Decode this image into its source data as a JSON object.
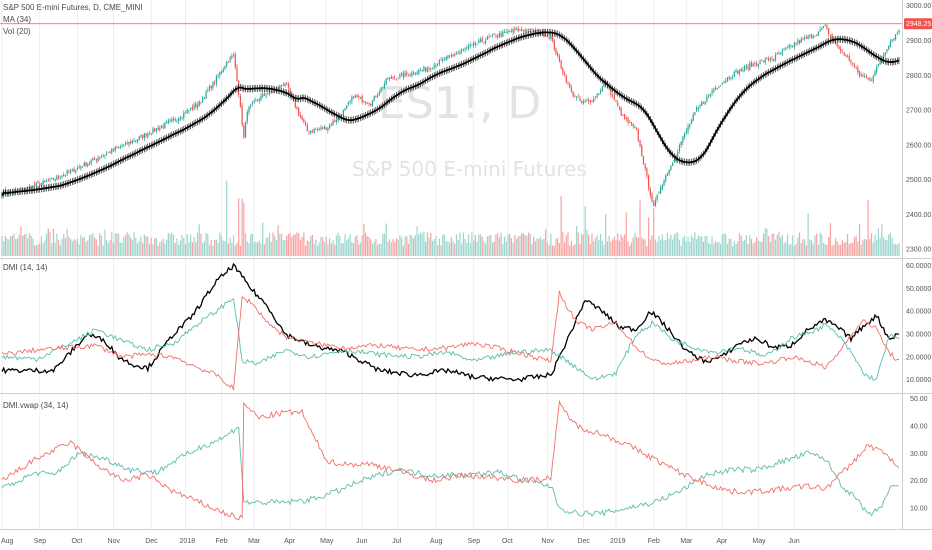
{
  "header": {
    "symbol_line": "S&P 500 E-mini Futures, D, CME_MINI",
    "ma_label": "MA (34)",
    "vol_label": "Vol (20)",
    "watermark_ticker": "ES1!, D",
    "watermark_name": "S&P 500 E-mini Futures",
    "last_price_badge": "2948.25"
  },
  "panes": {
    "dmi_label": "DMI (14, 14)",
    "dmivwap_label": "DMI.vwap (34, 14)"
  },
  "colors": {
    "up": "#26a69a",
    "down": "#ef5350",
    "vol_up": "#9fd6cf",
    "vol_down": "#f7a5a3",
    "ma": "#000000",
    "adx": "#000000",
    "plus_di": "#5cbcb0",
    "minus_di": "#f2706a",
    "price_line": "#ef5350",
    "grid": "#eeeeee",
    "axis": "#cfcfcf"
  },
  "chart_data": [
    {
      "type": "candlestick",
      "title": "S&P 500 E-mini Futures, D, CME_MINI",
      "x_tick_labels": [
        "Aug",
        "Sep",
        "Oct",
        "Nov",
        "Dec",
        "2018",
        "Feb",
        "Mar",
        "Apr",
        "May",
        "Jun",
        "Jul",
        "Aug",
        "Sep",
        "Oct",
        "Nov",
        "Dec",
        "2019",
        "Feb",
        "Mar",
        "Apr",
        "May",
        "Jun"
      ],
      "y_tick_labels": [
        "3000.00",
        "2900.00",
        "2800.00",
        "2700.00",
        "2600.00",
        "2500.00",
        "2400.00",
        "2300.00"
      ],
      "ylim": [
        2280,
        3005
      ],
      "last_price": 2948.25,
      "anchors": [
        [
          0,
          2462
        ],
        [
          10,
          2468
        ],
        [
          30,
          2500
        ],
        [
          45,
          2535
        ],
        [
          62,
          2578
        ],
        [
          78,
          2615
        ],
        [
          100,
          2670
        ],
        [
          115,
          2720
        ],
        [
          125,
          2790
        ],
        [
          132,
          2845
        ],
        [
          135,
          2855
        ],
        [
          137,
          2790
        ],
        [
          141,
          2620
        ],
        [
          143,
          2700
        ],
        [
          150,
          2735
        ],
        [
          160,
          2760
        ],
        [
          165,
          2780
        ],
        [
          172,
          2700
        ],
        [
          178,
          2640
        ],
        [
          190,
          2650
        ],
        [
          200,
          2700
        ],
        [
          205,
          2740
        ],
        [
          215,
          2720
        ],
        [
          225,
          2790
        ],
        [
          235,
          2800
        ],
        [
          248,
          2820
        ],
        [
          260,
          2850
        ],
        [
          272,
          2880
        ],
        [
          285,
          2910
        ],
        [
          300,
          2930
        ],
        [
          310,
          2928
        ],
        [
          320,
          2910
        ],
        [
          324,
          2850
        ],
        [
          332,
          2750
        ],
        [
          338,
          2720
        ],
        [
          345,
          2730
        ],
        [
          352,
          2780
        ],
        [
          362,
          2680
        ],
        [
          370,
          2640
        ],
        [
          377,
          2480
        ],
        [
          380,
          2420
        ],
        [
          384,
          2480
        ],
        [
          390,
          2540
        ],
        [
          397,
          2620
        ],
        [
          405,
          2700
        ],
        [
          415,
          2760
        ],
        [
          425,
          2800
        ],
        [
          437,
          2830
        ],
        [
          450,
          2850
        ],
        [
          462,
          2890
        ],
        [
          475,
          2920
        ],
        [
          480,
          2940
        ],
        [
          487,
          2880
        ],
        [
          495,
          2840
        ],
        [
          500,
          2800
        ],
        [
          507,
          2790
        ],
        [
          517,
          2890
        ],
        [
          523,
          2930
        ]
      ],
      "ma_period": 34,
      "volume": {
        "label": "Vol (20)"
      }
    },
    {
      "type": "line",
      "title": "DMI (14, 14)",
      "y_tick_labels": [
        "60.0000",
        "50.0000",
        "40.0000",
        "30.0000",
        "20.0000",
        "10.0000"
      ],
      "ylim": [
        5,
        62
      ],
      "series": [
        {
          "key": "adx",
          "anchors": [
            [
              0,
              14
            ],
            [
              30,
              14
            ],
            [
              50,
              30
            ],
            [
              60,
              27
            ],
            [
              68,
              20
            ],
            [
              75,
              17
            ],
            [
              85,
              15
            ],
            [
              100,
              30
            ],
            [
              110,
              37
            ],
            [
              125,
              53
            ],
            [
              135,
              60
            ],
            [
              145,
              50
            ],
            [
              155,
              42
            ],
            [
              165,
              30
            ],
            [
              180,
              25
            ],
            [
              200,
              22
            ],
            [
              220,
              14
            ],
            [
              240,
              12
            ],
            [
              260,
              14
            ],
            [
              275,
              11
            ],
            [
              300,
              10
            ],
            [
              320,
              12
            ],
            [
              330,
              28
            ],
            [
              340,
              45
            ],
            [
              350,
              40
            ],
            [
              360,
              33
            ],
            [
              370,
              32
            ],
            [
              378,
              40
            ],
            [
              385,
              35
            ],
            [
              400,
              22
            ],
            [
              410,
              18
            ],
            [
              420,
              20
            ],
            [
              430,
              26
            ],
            [
              440,
              28
            ],
            [
              450,
              24
            ],
            [
              460,
              25
            ],
            [
              470,
              32
            ],
            [
              480,
              36
            ],
            [
              487,
              33
            ],
            [
              495,
              28
            ],
            [
              503,
              34
            ],
            [
              510,
              38
            ],
            [
              517,
              28
            ],
            [
              523,
              30
            ]
          ]
        },
        {
          "key": "plus_di",
          "anchors": [
            [
              0,
              20
            ],
            [
              20,
              19
            ],
            [
              40,
              26
            ],
            [
              55,
              32
            ],
            [
              70,
              27
            ],
            [
              85,
              23
            ],
            [
              100,
              26
            ],
            [
              115,
              35
            ],
            [
              125,
              40
            ],
            [
              135,
              46
            ],
            [
              140,
              18
            ],
            [
              150,
              17
            ],
            [
              165,
              23
            ],
            [
              180,
              20
            ],
            [
              200,
              23
            ],
            [
              220,
              21
            ],
            [
              240,
              20
            ],
            [
              260,
              22
            ],
            [
              275,
              18
            ],
            [
              300,
              22
            ],
            [
              320,
              23
            ],
            [
              330,
              18
            ],
            [
              345,
              10
            ],
            [
              358,
              13
            ],
            [
              370,
              30
            ],
            [
              380,
              35
            ],
            [
              390,
              28
            ],
            [
              400,
              25
            ],
            [
              415,
              22
            ],
            [
              430,
              24
            ],
            [
              445,
              20
            ],
            [
              460,
              28
            ],
            [
              475,
              32
            ],
            [
              480,
              34
            ],
            [
              488,
              29
            ],
            [
              495,
              22
            ],
            [
              503,
              12
            ],
            [
              510,
              10
            ],
            [
              517,
              29
            ],
            [
              523,
              28
            ]
          ]
        },
        {
          "key": "minus_di",
          "anchors": [
            [
              0,
              21
            ],
            [
              20,
              23
            ],
            [
              40,
              24
            ],
            [
              55,
              25
            ],
            [
              70,
              20
            ],
            [
              85,
              21
            ],
            [
              100,
              20
            ],
            [
              115,
              15
            ],
            [
              125,
              12
            ],
            [
              135,
              6
            ],
            [
              140,
              46
            ],
            [
              145,
              44
            ],
            [
              155,
              35
            ],
            [
              165,
              29
            ],
            [
              180,
              26
            ],
            [
              200,
              24
            ],
            [
              220,
              25
            ],
            [
              240,
              23
            ],
            [
              260,
              24
            ],
            [
              275,
              26
            ],
            [
              300,
              22
            ],
            [
              320,
              18
            ],
            [
              325,
              48
            ],
            [
              335,
              35
            ],
            [
              345,
              32
            ],
            [
              358,
              35
            ],
            [
              370,
              24
            ],
            [
              380,
              18
            ],
            [
              390,
              17
            ],
            [
              400,
              18
            ],
            [
              415,
              20
            ],
            [
              430,
              18
            ],
            [
              445,
              17
            ],
            [
              460,
              20
            ],
            [
              475,
              17
            ],
            [
              480,
              15
            ],
            [
              488,
              22
            ],
            [
              495,
              30
            ],
            [
              503,
              36
            ],
            [
              510,
              32
            ],
            [
              517,
              22
            ],
            [
              523,
              18
            ]
          ]
        }
      ]
    },
    {
      "type": "line",
      "title": "DMI.vwap (34, 14)",
      "y_tick_labels": [
        "50.00",
        "40.00",
        "30.00",
        "20.00",
        "10.00"
      ],
      "ylim": [
        3,
        51
      ],
      "series": [
        {
          "key": "plus_di",
          "anchors": [
            [
              0,
              17
            ],
            [
              20,
              23
            ],
            [
              30,
              22
            ],
            [
              45,
              30
            ],
            [
              60,
              28
            ],
            [
              75,
              24
            ],
            [
              90,
              23
            ],
            [
              100,
              27
            ],
            [
              115,
              32
            ],
            [
              130,
              36
            ],
            [
              138,
              40
            ],
            [
              141,
              12
            ],
            [
              150,
              12
            ],
            [
              165,
              12
            ],
            [
              180,
              13
            ],
            [
              195,
              16
            ],
            [
              210,
              20
            ],
            [
              230,
              24
            ],
            [
              250,
              22
            ],
            [
              270,
              22
            ],
            [
              290,
              23
            ],
            [
              305,
              20
            ],
            [
              320,
              18
            ],
            [
              325,
              10
            ],
            [
              335,
              8
            ],
            [
              350,
              8
            ],
            [
              365,
              10
            ],
            [
              380,
              12
            ],
            [
              395,
              16
            ],
            [
              410,
              22
            ],
            [
              425,
              24
            ],
            [
              440,
              24
            ],
            [
              455,
              27
            ],
            [
              470,
              30
            ],
            [
              480,
              28
            ],
            [
              490,
              18
            ],
            [
              500,
              12
            ],
            [
              505,
              7
            ],
            [
              512,
              10
            ],
            [
              518,
              17
            ],
            [
              523,
              18
            ]
          ]
        },
        {
          "key": "minus_di",
          "anchors": [
            [
              0,
              20
            ],
            [
              20,
              28
            ],
            [
              30,
              31
            ],
            [
              40,
              34
            ],
            [
              55,
              26
            ],
            [
              70,
              20
            ],
            [
              85,
              22
            ],
            [
              100,
              16
            ],
            [
              115,
              12
            ],
            [
              130,
              8
            ],
            [
              140,
              6
            ],
            [
              141,
              48
            ],
            [
              150,
              43
            ],
            [
              165,
              45
            ],
            [
              175,
              45
            ],
            [
              180,
              38
            ],
            [
              190,
              27
            ],
            [
              200,
              26
            ],
            [
              215,
              26
            ],
            [
              230,
              24
            ],
            [
              250,
              20
            ],
            [
              270,
              22
            ],
            [
              290,
              21
            ],
            [
              305,
              20
            ],
            [
              320,
              21
            ],
            [
              325,
              48
            ],
            [
              335,
              40
            ],
            [
              350,
              37
            ],
            [
              365,
              33
            ],
            [
              380,
              28
            ],
            [
              395,
              23
            ],
            [
              410,
              19
            ],
            [
              425,
              16
            ],
            [
              440,
              16
            ],
            [
              455,
              17
            ],
            [
              470,
              18
            ],
            [
              480,
              17
            ],
            [
              495,
              26
            ],
            [
              505,
              33
            ],
            [
              515,
              30
            ],
            [
              523,
              25
            ]
          ]
        }
      ]
    }
  ]
}
